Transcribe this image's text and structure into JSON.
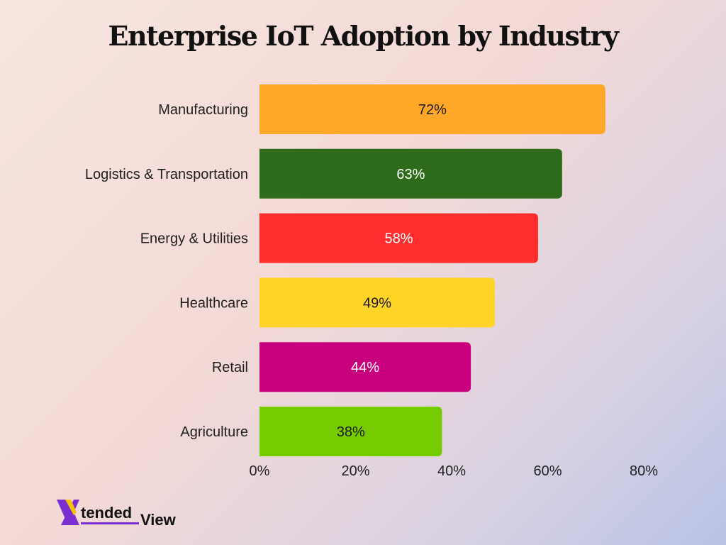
{
  "title": "Enterprise IoT Adoption by Industry",
  "chart_data": {
    "type": "bar",
    "orientation": "horizontal",
    "title": "Enterprise IoT Adoption by Industry",
    "categories": [
      "Manufacturing",
      "Logistics & Transportation",
      "Energy & Utilities",
      "Healthcare",
      "Retail",
      "Agriculture"
    ],
    "values": [
      72,
      63,
      58,
      49,
      44,
      38
    ],
    "value_labels": [
      "72%",
      "63%",
      "58%",
      "49%",
      "44%",
      "38%"
    ],
    "bar_colors": [
      "#ffa726",
      "#2e6b1a",
      "#ff2e2e",
      "#ffd426",
      "#c8007e",
      "#76cc00"
    ],
    "label_colors": [
      "#1a1a1a",
      "#ffffff",
      "#ffffff",
      "#1a1a1a",
      "#ffffff",
      "#1a1a1a"
    ],
    "xlim": [
      0,
      80
    ],
    "x_ticks": [
      "0%",
      "20%",
      "40%",
      "60%",
      "80%"
    ],
    "grid": false,
    "legend": "none"
  },
  "logo": {
    "text_x": "X",
    "text_tended": "tended",
    "text_view": "View",
    "colors": {
      "x_purple": "#7b2fd0",
      "x_yellow": "#f5c400",
      "text": "#111111",
      "underline": "#7b2fd0"
    }
  }
}
